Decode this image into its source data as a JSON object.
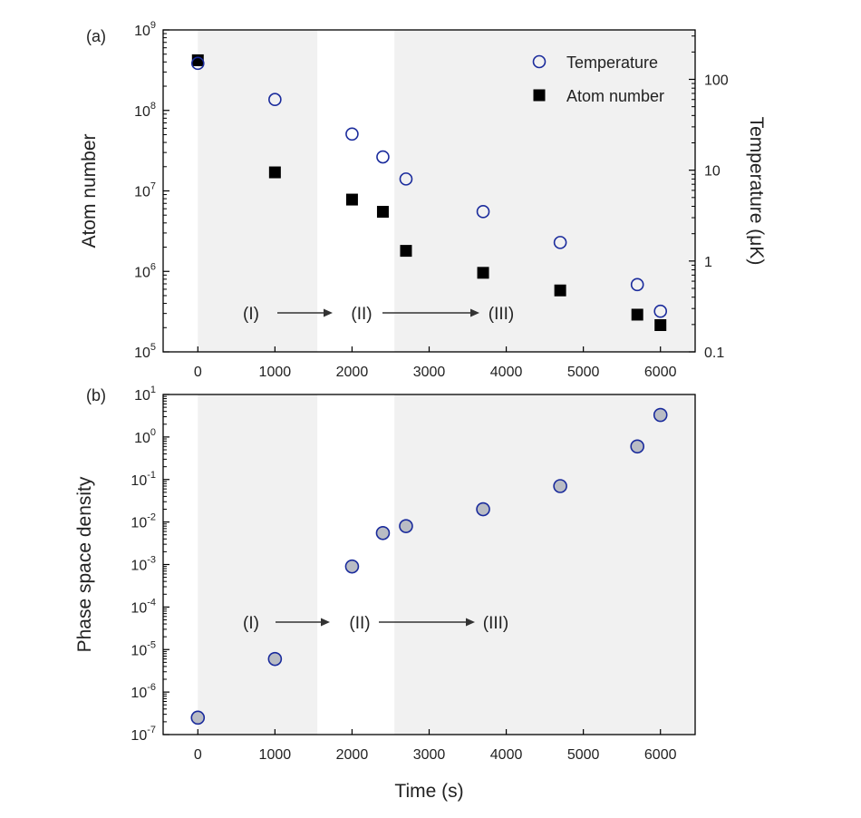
{
  "chart_data": [
    {
      "panel_label": "(a)",
      "type": "scatter",
      "x_axis": {
        "ticks": [
          "0",
          "1000",
          "2000",
          "3000",
          "4000",
          "5000",
          "6000"
        ],
        "xlim": [
          -450,
          6450
        ]
      },
      "y_left": {
        "label": "Atom number",
        "scale": "log",
        "ylim": [
          100000,
          1000000000
        ],
        "ticks": [
          {
            "base": "10",
            "exp": "5"
          },
          {
            "base": "10",
            "exp": "6"
          },
          {
            "base": "10",
            "exp": "7"
          },
          {
            "base": "10",
            "exp": "8"
          },
          {
            "base": "10",
            "exp": "9"
          }
        ]
      },
      "y_right": {
        "label": "Temperature (μK)",
        "scale": "log",
        "ylim": [
          0.1,
          350
        ],
        "ticks": [
          "0.1",
          "1",
          "10",
          "100"
        ]
      },
      "series": [
        {
          "name": "Temperature",
          "axis": "right",
          "marker": "open-circle",
          "color": "#1a2b9c",
          "points": [
            [
              0,
              150
            ],
            [
              1000,
              60
            ],
            [
              2000,
              25
            ],
            [
              2400,
              14
            ],
            [
              2700,
              8
            ],
            [
              3700,
              3.5
            ],
            [
              4700,
              1.6
            ],
            [
              5700,
              0.55
            ],
            [
              6000,
              0.28
            ]
          ]
        },
        {
          "name": "Atom number",
          "axis": "left",
          "marker": "filled-square",
          "color": "#000000",
          "points": [
            [
              0,
              420000000
            ],
            [
              1000,
              17000000
            ],
            [
              2000,
              7800000
            ],
            [
              2400,
              5500000
            ],
            [
              2700,
              1800000
            ],
            [
              3700,
              960000
            ],
            [
              4700,
              580000
            ],
            [
              5700,
              290000
            ],
            [
              6000,
              215000
            ]
          ]
        }
      ],
      "stages": [
        "(I)",
        "(II)",
        "(III)"
      ],
      "shaded_x_ranges": [
        [
          0,
          1550
        ],
        [
          2550,
          6450
        ]
      ],
      "legend_position": "top-right"
    },
    {
      "panel_label": "(b)",
      "type": "scatter",
      "x_axis": {
        "label": "Time (s)",
        "ticks": [
          "0",
          "1000",
          "2000",
          "3000",
          "4000",
          "5000",
          "6000"
        ],
        "xlim": [
          -450,
          6450
        ]
      },
      "y_left": {
        "label": "Phase space density",
        "scale": "log",
        "ylim": [
          1e-07,
          10
        ],
        "ticks": [
          {
            "base": "10",
            "exp": "-7"
          },
          {
            "base": "10",
            "exp": "-6"
          },
          {
            "base": "10",
            "exp": "-5"
          },
          {
            "base": "10",
            "exp": "-4"
          },
          {
            "base": "10",
            "exp": "-3"
          },
          {
            "base": "10",
            "exp": "-2"
          },
          {
            "base": "10",
            "exp": "-1"
          },
          {
            "base": "10",
            "exp": "0"
          },
          {
            "base": "10",
            "exp": "1"
          }
        ]
      },
      "series": [
        {
          "name": "",
          "marker": "gray-filled-circle",
          "color": "#1a2b9c",
          "fill": "#b9bcc4",
          "points": [
            [
              0,
              2.5e-07
            ],
            [
              1000,
              6e-06
            ],
            [
              2000,
              0.0009
            ],
            [
              2400,
              0.0055
            ],
            [
              2700,
              0.008
            ],
            [
              3700,
              0.02
            ],
            [
              4700,
              0.07
            ],
            [
              5700,
              0.6
            ],
            [
              6000,
              3.3
            ]
          ]
        }
      ],
      "stages": [
        "(I)",
        "(II)",
        "(III)"
      ],
      "shaded_x_ranges": [
        [
          0,
          1550
        ],
        [
          2550,
          6450
        ]
      ]
    }
  ]
}
